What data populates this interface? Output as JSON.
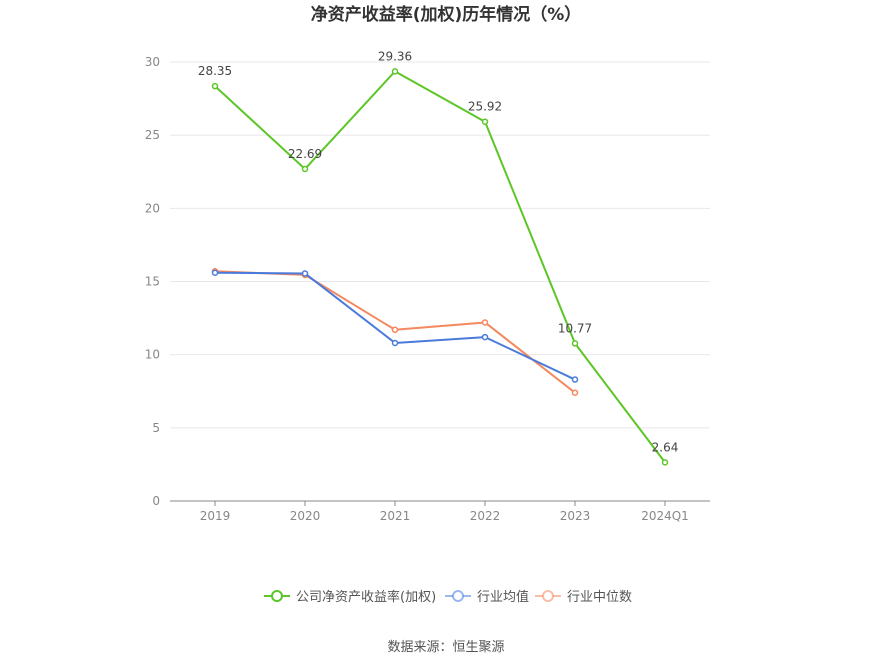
{
  "chart_data": {
    "type": "line",
    "title": "净资产收益率(加权)历年情况（%）",
    "categories": [
      "2019",
      "2020",
      "2021",
      "2022",
      "2023",
      "2024Q1"
    ],
    "ylim": [
      0,
      30
    ],
    "yticks": [
      0,
      5,
      10,
      15,
      20,
      25,
      30
    ],
    "grid": true,
    "legend_position": "bottom",
    "series": [
      {
        "name": "公司净资产收益率(加权)",
        "color": "#5cc626",
        "values": [
          28.35,
          22.69,
          29.36,
          25.92,
          10.77,
          2.64
        ],
        "labels": [
          "28.35",
          "22.69",
          "29.36",
          "25.92",
          "10.77",
          "2.64"
        ]
      },
      {
        "name": "行业均值",
        "color": "#4a7bdb",
        "values": [
          15.6,
          15.55,
          10.8,
          11.2,
          8.3,
          null
        ]
      },
      {
        "name": "行业中位数",
        "color": "#f4885e",
        "values": [
          15.7,
          15.45,
          11.7,
          12.2,
          7.4,
          null
        ]
      }
    ]
  },
  "source_text": "数据来源：恒生聚源"
}
